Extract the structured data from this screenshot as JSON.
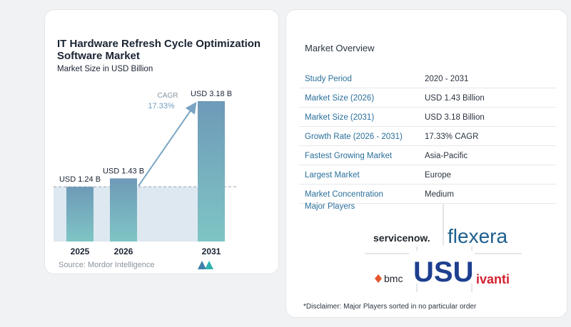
{
  "chart_data": {
    "type": "bar",
    "title": "IT Hardware Refresh Cycle Optimization Software Market",
    "subtitle": "Market Size in USD Billion",
    "categories": [
      "2025",
      "2026",
      "2031"
    ],
    "values": [
      1.24,
      1.43,
      3.18
    ],
    "data_labels": [
      "USD 1.24 B",
      "USD 1.43 B",
      "USD 3.18 B"
    ],
    "annotation": {
      "label": "CAGR",
      "value": "17.33%"
    },
    "grid": false,
    "colors": {
      "bar_top": "#6e9ab8",
      "bar_bottom": "#7fc5c5",
      "arrow": "#7aa5c3",
      "band": "#dde8f0",
      "dash": "#9aa3ab"
    }
  },
  "source": "Source: Mordor Intelligence",
  "overview": {
    "title": "Market Overview",
    "rows": [
      {
        "label": "Study Period",
        "value": "2020 - 2031"
      },
      {
        "label": "Market Size (2026)",
        "value": "USD 1.43 Billion"
      },
      {
        "label": "Market Size (2031)",
        "value": "USD 3.18 Billion"
      },
      {
        "label": "Growth Rate (2026 - 2031)",
        "value": "17.33% CAGR"
      },
      {
        "label": "Fastest Growing Market",
        "value": "Asia-Pacific"
      },
      {
        "label": "Largest Market",
        "value": "Europe"
      },
      {
        "label": "Market Concentration",
        "value": "Medium"
      }
    ],
    "major_players_title": "Major Players",
    "players": [
      "servicenow.",
      "flexera",
      "USU",
      "bmc",
      "ivanti"
    ],
    "disclaimer": "*Disclaimer: Major Players sorted in no particular order"
  }
}
